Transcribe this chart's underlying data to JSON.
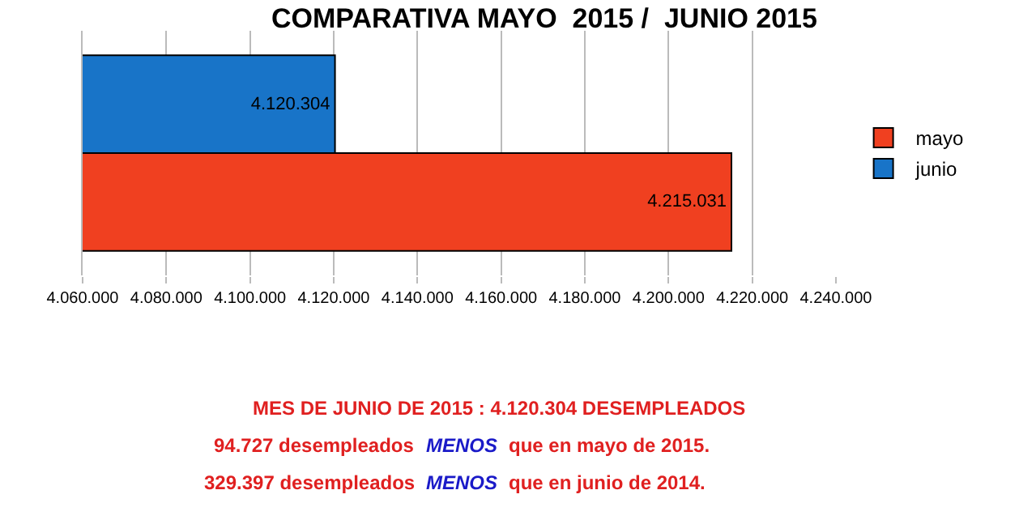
{
  "chart_data": {
    "type": "bar",
    "orientation": "horizontal",
    "title": "COMPARATIVA MAYO  2015 /  JUNIO 2015",
    "categories": [
      null
    ],
    "series": [
      {
        "name": "mayo",
        "color": "#f04020",
        "values": [
          4215031
        ],
        "value_labels": [
          "4.215.031"
        ]
      },
      {
        "name": "junio",
        "color": "#1874c8",
        "values": [
          4120304
        ],
        "value_labels": [
          "4.120.304"
        ]
      }
    ],
    "xlim": [
      4060000,
      4240000
    ],
    "xticks": [
      {
        "value": 4060000,
        "label": "4.060.000"
      },
      {
        "value": 4080000,
        "label": "4.080.000"
      },
      {
        "value": 4100000,
        "label": "4.100.000"
      },
      {
        "value": 4120000,
        "label": "4.120.000"
      },
      {
        "value": 4140000,
        "label": "4.140.000"
      },
      {
        "value": 4160000,
        "label": "4.160.000"
      },
      {
        "value": 4180000,
        "label": "4.180.000"
      },
      {
        "value": 4200000,
        "label": "4.200.000"
      },
      {
        "value": 4220000,
        "label": "4.220.000"
      },
      {
        "value": 4240000,
        "label": "4.240.000"
      }
    ],
    "grid": "x",
    "legend": "right",
    "annotations": [
      "MES DE JUNIO DE 2015 : 4.120.304 DESEMPLEADOS",
      "94.727 desempleados",
      "MENOS",
      "que en mayo de 2015.",
      "329.397 desempleados",
      "MENOS",
      "que en junio de 2014."
    ]
  }
}
